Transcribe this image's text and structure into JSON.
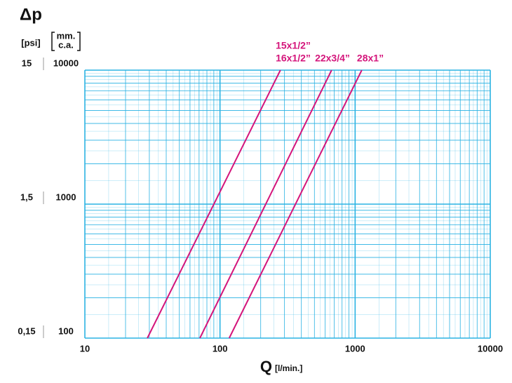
{
  "chart_data": {
    "type": "line",
    "title": "Δp",
    "ylabel": "[psi]",
    "y2label_lines": [
      "mm.",
      "c.a."
    ],
    "xlabel": "Q",
    "xlabel_unit": "[l/min.]",
    "xscale": "log",
    "yscale": "log",
    "grid": true,
    "xlim": [
      10,
      10000
    ],
    "xticks": [
      10,
      100,
      1000,
      10000
    ],
    "ylim": [
      100,
      10000
    ],
    "yticks": [
      100,
      1000,
      10000
    ],
    "y2lim": [
      0.15,
      15
    ],
    "y2ticks": [
      {
        "value": 0.15,
        "label": "0,15"
      },
      {
        "value": 1.5,
        "label": "1,5"
      },
      15
    ],
    "grid_color": "#2bb3e3",
    "series": [
      {
        "labels": [
          "15x1/2”",
          "16x1/2”"
        ],
        "color": "#d4157b",
        "x": [
          29,
          280
        ],
        "y": [
          100,
          10000
        ]
      },
      {
        "labels": [
          "22x3/4”"
        ],
        "color": "#d4157b",
        "x": [
          71,
          670
        ],
        "y": [
          100,
          10000
        ]
      },
      {
        "labels": [
          "28x1”"
        ],
        "color": "#d4157b",
        "x": [
          117,
          1120
        ],
        "y": [
          100,
          10000
        ]
      }
    ]
  }
}
